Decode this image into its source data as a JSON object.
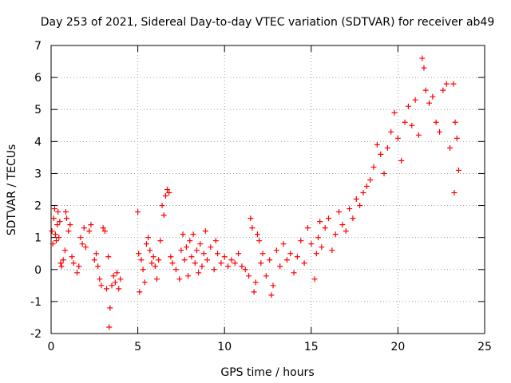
{
  "chart_data": {
    "type": "scatter",
    "title": "Day 253 of 2021, Sidereal Day-to-day VTEC variation (SDTVAR) for receiver ab49",
    "xlabel": "GPS time / hours",
    "ylabel": "SDTVAR / TECUs",
    "xlim": [
      0,
      25
    ],
    "ylim": [
      -2,
      7
    ],
    "xticks": [
      "0",
      "5",
      "10",
      "15",
      "20",
      "25"
    ],
    "yticks": [
      "-2",
      "-1",
      "0",
      "1",
      "2",
      "3",
      "4",
      "5",
      "6",
      "7"
    ],
    "grid": true,
    "marker": "+",
    "series": [
      {
        "name": "SDTVAR",
        "color": "#ff0000",
        "points": [
          [
            0.05,
            1.2
          ],
          [
            0.1,
            0.8
          ],
          [
            0.15,
            1.6
          ],
          [
            0.2,
            1.9
          ],
          [
            0.25,
            1.1
          ],
          [
            0.3,
            0.9
          ],
          [
            0.35,
            1.4
          ],
          [
            0.4,
            1.8
          ],
          [
            0.45,
            1.0
          ],
          [
            0.5,
            1.5
          ],
          [
            0.55,
            0.2
          ],
          [
            0.6,
            0.1
          ],
          [
            0.7,
            0.3
          ],
          [
            0.8,
            0.6
          ],
          [
            0.85,
            1.8
          ],
          [
            0.9,
            1.6
          ],
          [
            1.0,
            1.2
          ],
          [
            1.1,
            1.4
          ],
          [
            1.2,
            0.4
          ],
          [
            1.3,
            0.2
          ],
          [
            1.5,
            -0.1
          ],
          [
            1.6,
            0.1
          ],
          [
            1.7,
            1.0
          ],
          [
            1.8,
            0.8
          ],
          [
            1.9,
            1.3
          ],
          [
            2.0,
            0.7
          ],
          [
            2.2,
            1.2
          ],
          [
            2.3,
            1.4
          ],
          [
            2.5,
            0.3
          ],
          [
            2.6,
            0.5
          ],
          [
            2.7,
            0.1
          ],
          [
            2.8,
            -0.3
          ],
          [
            2.9,
            -0.5
          ],
          [
            3.0,
            1.3
          ],
          [
            3.1,
            1.2
          ],
          [
            3.2,
            -0.6
          ],
          [
            3.3,
            0.4
          ],
          [
            3.35,
            -1.8
          ],
          [
            3.4,
            -1.2
          ],
          [
            3.5,
            -0.5
          ],
          [
            3.6,
            -0.2
          ],
          [
            3.7,
            -0.4
          ],
          [
            3.8,
            -0.1
          ],
          [
            3.9,
            -0.6
          ],
          [
            4.0,
            -0.3
          ],
          [
            5.0,
            1.8
          ],
          [
            5.05,
            0.5
          ],
          [
            5.1,
            -0.7
          ],
          [
            5.2,
            0.3
          ],
          [
            5.3,
            0.0
          ],
          [
            5.4,
            -0.4
          ],
          [
            5.5,
            0.8
          ],
          [
            5.6,
            1.0
          ],
          [
            5.7,
            0.6
          ],
          [
            5.8,
            0.2
          ],
          [
            5.9,
            0.4
          ],
          [
            6.0,
            0.1
          ],
          [
            6.1,
            -0.3
          ],
          [
            6.2,
            0.3
          ],
          [
            6.3,
            0.9
          ],
          [
            6.4,
            2.0
          ],
          [
            6.5,
            1.7
          ],
          [
            6.6,
            2.3
          ],
          [
            6.7,
            2.5
          ],
          [
            6.8,
            2.4
          ],
          [
            6.9,
            0.4
          ],
          [
            7.0,
            0.2
          ],
          [
            7.2,
            0.0
          ],
          [
            7.4,
            -0.3
          ],
          [
            7.5,
            0.6
          ],
          [
            7.6,
            1.1
          ],
          [
            7.7,
            0.3
          ],
          [
            7.8,
            0.7
          ],
          [
            7.9,
            -0.2
          ],
          [
            8.0,
            0.9
          ],
          [
            8.1,
            0.4
          ],
          [
            8.2,
            1.1
          ],
          [
            8.3,
            0.2
          ],
          [
            8.4,
            0.6
          ],
          [
            8.5,
            -0.1
          ],
          [
            8.6,
            0.8
          ],
          [
            8.7,
            0.1
          ],
          [
            8.8,
            0.5
          ],
          [
            8.9,
            1.2
          ],
          [
            9.0,
            0.3
          ],
          [
            9.2,
            0.7
          ],
          [
            9.4,
            0.0
          ],
          [
            9.5,
            0.9
          ],
          [
            9.6,
            0.5
          ],
          [
            9.8,
            0.2
          ],
          [
            10.0,
            0.4
          ],
          [
            10.2,
            0.1
          ],
          [
            10.4,
            0.3
          ],
          [
            10.6,
            0.2
          ],
          [
            10.8,
            0.5
          ],
          [
            11.0,
            0.1
          ],
          [
            11.2,
            0.0
          ],
          [
            11.4,
            -0.2
          ],
          [
            11.5,
            1.6
          ],
          [
            11.6,
            1.3
          ],
          [
            11.7,
            -0.7
          ],
          [
            11.8,
            -0.4
          ],
          [
            11.9,
            1.1
          ],
          [
            12.0,
            0.9
          ],
          [
            12.1,
            0.2
          ],
          [
            12.2,
            0.5
          ],
          [
            12.4,
            -0.2
          ],
          [
            12.6,
            0.3
          ],
          [
            12.7,
            -0.8
          ],
          [
            12.8,
            -0.5
          ],
          [
            13.0,
            0.6
          ],
          [
            13.2,
            0.1
          ],
          [
            13.4,
            0.8
          ],
          [
            13.6,
            0.3
          ],
          [
            13.8,
            0.5
          ],
          [
            14.0,
            -0.1
          ],
          [
            14.2,
            0.4
          ],
          [
            14.4,
            0.9
          ],
          [
            14.6,
            0.2
          ],
          [
            14.8,
            1.3
          ],
          [
            15.0,
            0.8
          ],
          [
            15.2,
            -0.3
          ],
          [
            15.3,
            0.5
          ],
          [
            15.4,
            1.0
          ],
          [
            15.5,
            1.5
          ],
          [
            15.6,
            0.7
          ],
          [
            15.8,
            1.3
          ],
          [
            16.0,
            1.6
          ],
          [
            16.2,
            0.6
          ],
          [
            16.4,
            1.1
          ],
          [
            16.6,
            1.8
          ],
          [
            16.8,
            1.4
          ],
          [
            17.0,
            1.2
          ],
          [
            17.2,
            1.9
          ],
          [
            17.4,
            1.6
          ],
          [
            17.6,
            2.2
          ],
          [
            17.8,
            2.0
          ],
          [
            18.0,
            2.4
          ],
          [
            18.2,
            2.6
          ],
          [
            18.4,
            2.8
          ],
          [
            18.6,
            3.2
          ],
          [
            18.8,
            3.9
          ],
          [
            19.0,
            3.6
          ],
          [
            19.2,
            3.0
          ],
          [
            19.4,
            3.8
          ],
          [
            19.6,
            4.3
          ],
          [
            19.8,
            4.9
          ],
          [
            20.0,
            4.1
          ],
          [
            20.2,
            3.4
          ],
          [
            20.4,
            4.6
          ],
          [
            20.6,
            5.1
          ],
          [
            20.8,
            4.5
          ],
          [
            21.0,
            5.3
          ],
          [
            21.2,
            4.2
          ],
          [
            21.4,
            6.6
          ],
          [
            21.5,
            6.3
          ],
          [
            21.6,
            5.6
          ],
          [
            21.8,
            5.2
          ],
          [
            22.0,
            5.4
          ],
          [
            22.2,
            4.6
          ],
          [
            22.4,
            4.3
          ],
          [
            22.6,
            5.6
          ],
          [
            22.8,
            5.8
          ],
          [
            23.0,
            3.8
          ],
          [
            23.2,
            5.8
          ],
          [
            23.25,
            2.4
          ],
          [
            23.3,
            4.6
          ],
          [
            23.4,
            4.1
          ],
          [
            23.5,
            3.1
          ]
        ]
      }
    ]
  }
}
